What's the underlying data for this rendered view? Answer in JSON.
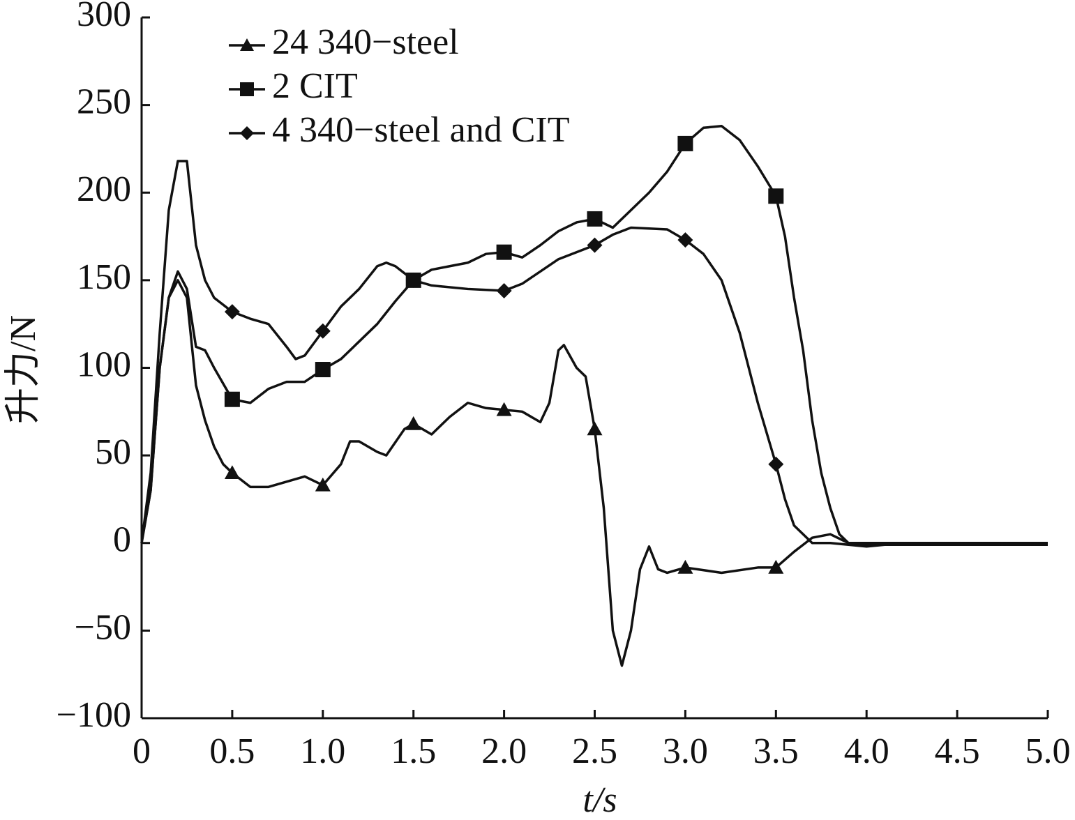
{
  "chart_data": {
    "type": "line",
    "xlabel": "t/s",
    "ylabel": "升力/N",
    "xlim": [
      0,
      5
    ],
    "ylim": [
      -100,
      300
    ],
    "xticks": [
      0,
      0.5,
      {
        "value": 1,
        "label": "1.0"
      },
      1.5,
      {
        "value": 2,
        "label": "2.0"
      },
      2.5,
      {
        "value": 3,
        "label": "3.0"
      },
      3.5,
      {
        "value": 4,
        "label": "4.0"
      },
      4.5,
      {
        "value": 5,
        "label": "5.0"
      }
    ],
    "yticks": [
      {
        "value": -100,
        "label": "−100"
      },
      {
        "value": -50,
        "label": "−50"
      },
      0,
      50,
      100,
      150,
      200,
      250,
      300
    ],
    "legend": "upper left",
    "series": [
      {
        "name": "24 340−steel",
        "color": "#111111",
        "marker": "triangle",
        "x": [
          0,
          0.05,
          0.1,
          0.15,
          0.2,
          0.25,
          0.3,
          0.35,
          0.4,
          0.45,
          0.5,
          0.6,
          0.7,
          0.8,
          0.9,
          1.0,
          1.1,
          1.15,
          1.2,
          1.3,
          1.35,
          1.45,
          1.5,
          1.6,
          1.7,
          1.8,
          1.9,
          2.0,
          2.1,
          2.2,
          2.25,
          2.3,
          2.33,
          2.4,
          2.45,
          2.5,
          2.55,
          2.6,
          2.65,
          2.7,
          2.75,
          2.8,
          2.85,
          2.9,
          3.0,
          3.2,
          3.4,
          3.5,
          3.6,
          3.7,
          3.8,
          3.9,
          4.0,
          4.5,
          5.0
        ],
        "values": [
          0,
          30,
          100,
          140,
          150,
          140,
          90,
          70,
          55,
          45,
          40,
          32,
          32,
          35,
          38,
          33,
          45,
          58,
          58,
          52,
          50,
          65,
          68,
          62,
          72,
          80,
          77,
          76,
          75,
          69,
          80,
          110,
          113,
          100,
          95,
          65,
          20,
          -50,
          -70,
          -50,
          -15,
          -2,
          -15,
          -17,
          -14,
          -17,
          -14,
          -14,
          -5,
          3,
          5,
          0,
          -1,
          -1,
          -1
        ]
      },
      {
        "name": "2 CIT",
        "color": "#111111",
        "marker": "square",
        "x": [
          0,
          0.05,
          0.1,
          0.15,
          0.2,
          0.25,
          0.3,
          0.35,
          0.4,
          0.5,
          0.6,
          0.7,
          0.8,
          0.9,
          1.0,
          1.1,
          1.2,
          1.3,
          1.4,
          1.5,
          1.6,
          1.7,
          1.8,
          1.9,
          2.0,
          2.1,
          2.2,
          2.3,
          2.4,
          2.5,
          2.6,
          2.7,
          2.8,
          2.9,
          3.0,
          3.1,
          3.2,
          3.3,
          3.4,
          3.5,
          3.55,
          3.6,
          3.65,
          3.7,
          3.75,
          3.8,
          3.85,
          3.9,
          4.0,
          5.0
        ],
        "values": [
          0,
          30,
          100,
          140,
          155,
          145,
          112,
          110,
          100,
          82,
          80,
          88,
          92,
          92,
          99,
          105,
          115,
          125,
          138,
          150,
          156,
          158,
          160,
          165,
          166,
          163,
          170,
          178,
          183,
          185,
          180,
          190,
          200,
          212,
          228,
          237,
          238,
          230,
          215,
          198,
          175,
          140,
          110,
          70,
          40,
          20,
          5,
          0,
          0,
          0
        ]
      },
      {
        "name": "4 340−steel and CIT",
        "color": "#111111",
        "marker": "diamond",
        "x": [
          0,
          0.05,
          0.1,
          0.15,
          0.2,
          0.25,
          0.3,
          0.35,
          0.4,
          0.5,
          0.6,
          0.7,
          0.8,
          0.85,
          0.9,
          1.0,
          1.1,
          1.2,
          1.3,
          1.35,
          1.4,
          1.5,
          1.6,
          1.8,
          2.0,
          2.1,
          2.2,
          2.3,
          2.5,
          2.6,
          2.7,
          2.9,
          3.0,
          3.1,
          3.2,
          3.3,
          3.4,
          3.5,
          3.55,
          3.6,
          3.7,
          3.8,
          4.0,
          4.2,
          5.0
        ],
        "values": [
          0,
          40,
          120,
          190,
          218,
          218,
          170,
          150,
          140,
          132,
          128,
          125,
          112,
          105,
          107,
          121,
          135,
          145,
          158,
          160,
          158,
          150,
          147,
          145,
          144,
          148,
          155,
          162,
          170,
          176,
          180,
          179,
          173,
          165,
          150,
          120,
          80,
          45,
          25,
          10,
          0,
          0,
          -2,
          0,
          -1
        ]
      }
    ]
  }
}
